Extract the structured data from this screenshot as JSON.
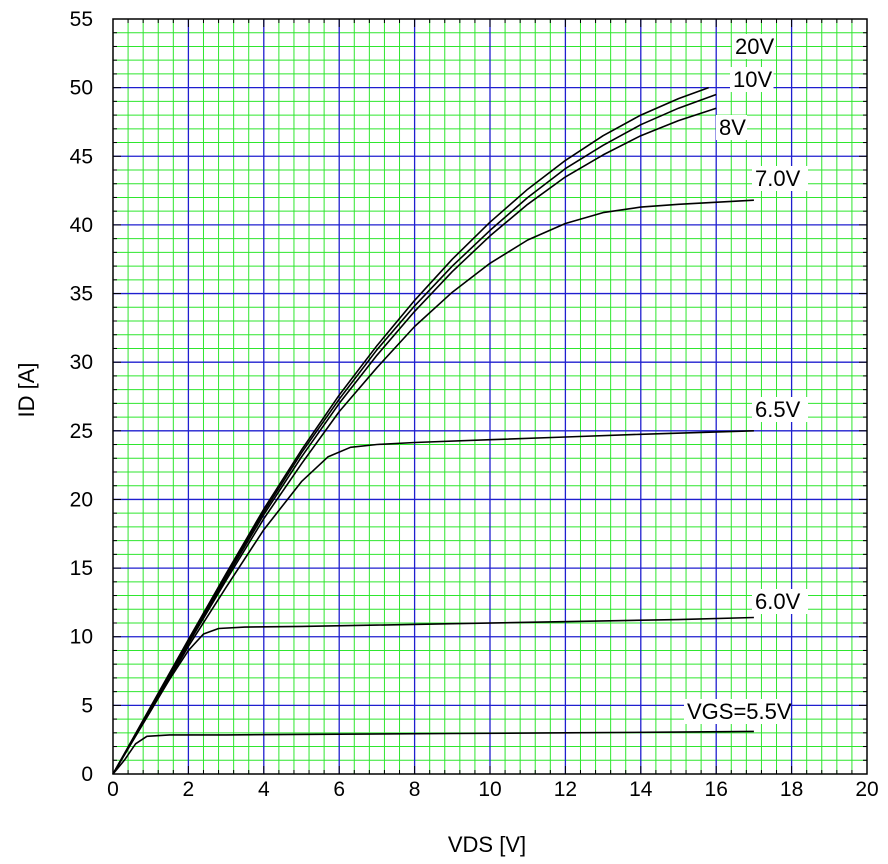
{
  "chart_data": {
    "type": "line",
    "title": "",
    "xlabel": "VDS [V]",
    "ylabel": "ID [A]",
    "xlim": [
      0,
      20
    ],
    "ylim": [
      0,
      55
    ],
    "x_ticks": [
      "0",
      "2",
      "4",
      "6",
      "8",
      "10",
      "12",
      "14",
      "16",
      "18",
      "20"
    ],
    "y_ticks": [
      "0",
      "5",
      "10",
      "15",
      "20",
      "25",
      "30",
      "35",
      "40",
      "45",
      "50",
      "55"
    ],
    "grid": true,
    "colors": {
      "major_grid": "#1f1fcf",
      "minor_grid": "#2fe62f",
      "curve": "#000000",
      "frame": "#000000"
    },
    "series": [
      {
        "name": "VGS=5.5V",
        "label": "VGS=5.5V",
        "points": [
          [
            0,
            0
          ],
          [
            0.3,
            1.0
          ],
          [
            0.6,
            2.2
          ],
          [
            0.9,
            2.75
          ],
          [
            1.5,
            2.85
          ],
          [
            3,
            2.85
          ],
          [
            6,
            2.9
          ],
          [
            9,
            2.95
          ],
          [
            12,
            3.0
          ],
          [
            15,
            3.05
          ],
          [
            17,
            3.1
          ]
        ]
      },
      {
        "name": "6.0V",
        "label": "6.0V",
        "points": [
          [
            0,
            0
          ],
          [
            0.5,
            2.3
          ],
          [
            1,
            4.6
          ],
          [
            1.5,
            6.9
          ],
          [
            2,
            9.0
          ],
          [
            2.4,
            10.2
          ],
          [
            2.8,
            10.6
          ],
          [
            3.5,
            10.7
          ],
          [
            5,
            10.75
          ],
          [
            7,
            10.85
          ],
          [
            9,
            10.95
          ],
          [
            11,
            11.05
          ],
          [
            13,
            11.15
          ],
          [
            15,
            11.25
          ],
          [
            17,
            11.4
          ]
        ]
      },
      {
        "name": "6.5V",
        "label": "6.5V",
        "points": [
          [
            0,
            0
          ],
          [
            1,
            4.6
          ],
          [
            2,
            9.3
          ],
          [
            3,
            13.6
          ],
          [
            4,
            17.8
          ],
          [
            5,
            21.3
          ],
          [
            5.7,
            23.1
          ],
          [
            6.3,
            23.8
          ],
          [
            7,
            24.0
          ],
          [
            8,
            24.15
          ],
          [
            10,
            24.35
          ],
          [
            12,
            24.55
          ],
          [
            14,
            24.75
          ],
          [
            17,
            25.0
          ]
        ]
      },
      {
        "name": "7.0V",
        "label": "7.0V",
        "points": [
          [
            0,
            0
          ],
          [
            1,
            4.7
          ],
          [
            2,
            9.5
          ],
          [
            3,
            14.1
          ],
          [
            4,
            18.6
          ],
          [
            5,
            22.6
          ],
          [
            6,
            26.4
          ],
          [
            7,
            29.6
          ],
          [
            8,
            32.6
          ],
          [
            9,
            35.1
          ],
          [
            10,
            37.2
          ],
          [
            11,
            38.9
          ],
          [
            12,
            40.1
          ],
          [
            13,
            40.9
          ],
          [
            14,
            41.3
          ],
          [
            15,
            41.5
          ],
          [
            17,
            41.8
          ]
        ]
      },
      {
        "name": "8V",
        "label": "8V",
        "points": [
          [
            0,
            0
          ],
          [
            1,
            4.8
          ],
          [
            2,
            9.6
          ],
          [
            3,
            14.3
          ],
          [
            4,
            18.9
          ],
          [
            5,
            23.1
          ],
          [
            6,
            27.0
          ],
          [
            7,
            30.5
          ],
          [
            8,
            33.7
          ],
          [
            9,
            36.6
          ],
          [
            10,
            39.2
          ],
          [
            11,
            41.5
          ],
          [
            12,
            43.5
          ],
          [
            13,
            45.1
          ],
          [
            14,
            46.5
          ],
          [
            15,
            47.6
          ],
          [
            16,
            48.5
          ]
        ]
      },
      {
        "name": "10V",
        "label": "10V",
        "points": [
          [
            0,
            0
          ],
          [
            1,
            4.85
          ],
          [
            2,
            9.7
          ],
          [
            3,
            14.5
          ],
          [
            4,
            19.1
          ],
          [
            5,
            23.4
          ],
          [
            6,
            27.3
          ],
          [
            7,
            30.9
          ],
          [
            8,
            34.1
          ],
          [
            9,
            37.0
          ],
          [
            10,
            39.6
          ],
          [
            11,
            42.0
          ],
          [
            12,
            44.1
          ],
          [
            13,
            45.8
          ],
          [
            14,
            47.3
          ],
          [
            15,
            48.5
          ],
          [
            16,
            49.5
          ]
        ]
      },
      {
        "name": "20V",
        "label": "20V",
        "points": [
          [
            0,
            0
          ],
          [
            1,
            4.9
          ],
          [
            2,
            9.8
          ],
          [
            3,
            14.6
          ],
          [
            4,
            19.3
          ],
          [
            5,
            23.6
          ],
          [
            6,
            27.6
          ],
          [
            7,
            31.2
          ],
          [
            8,
            34.5
          ],
          [
            9,
            37.5
          ],
          [
            10,
            40.2
          ],
          [
            11,
            42.6
          ],
          [
            12,
            44.7
          ],
          [
            13,
            46.5
          ],
          [
            14,
            48.0
          ],
          [
            15,
            49.2
          ],
          [
            15.8,
            50.0
          ]
        ]
      }
    ]
  }
}
